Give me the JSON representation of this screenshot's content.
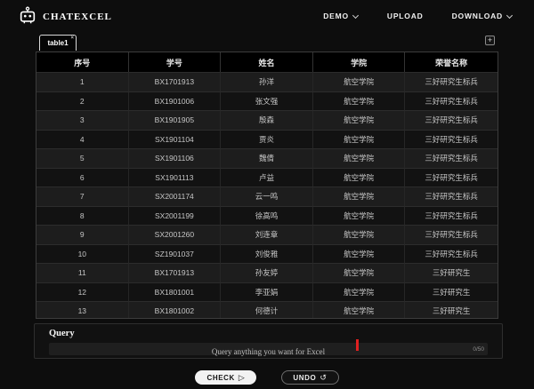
{
  "header": {
    "logo": "ChatExcel",
    "nav": [
      {
        "label": "DEMO",
        "dropdown": true
      },
      {
        "label": "UPLOAD",
        "dropdown": false
      },
      {
        "label": "DOWNLOAD",
        "dropdown": true
      }
    ]
  },
  "workspace": {
    "active_tab": "table1",
    "tab_close": "×",
    "add_table": "+"
  },
  "table": {
    "columns": [
      "序号",
      "学号",
      "姓名",
      "学院",
      "荣誉名称"
    ],
    "rows": [
      [
        "1",
        "BX1701913",
        "孙洋",
        "航空学院",
        "三好研究生标兵"
      ],
      [
        "2",
        "BX1901006",
        "张文强",
        "航空学院",
        "三好研究生标兵"
      ],
      [
        "3",
        "BX1901905",
        "殷森",
        "航空学院",
        "三好研究生标兵"
      ],
      [
        "4",
        "SX1901104",
        "贾炎",
        "航空学院",
        "三好研究生标兵"
      ],
      [
        "5",
        "SX1901106",
        "魏倩",
        "航空学院",
        "三好研究生标兵"
      ],
      [
        "6",
        "SX1901113",
        "卢益",
        "航空学院",
        "三好研究生标兵"
      ],
      [
        "7",
        "SX2001174",
        "云一鸣",
        "航空学院",
        "三好研究生标兵"
      ],
      [
        "8",
        "SX2001199",
        "徐高鸣",
        "航空学院",
        "三好研究生标兵"
      ],
      [
        "9",
        "SX2001260",
        "刘连章",
        "航空学院",
        "三好研究生标兵"
      ],
      [
        "10",
        "SZ1901037",
        "刘俊雅",
        "航空学院",
        "三好研究生标兵"
      ],
      [
        "11",
        "BX1701913",
        "孙友婷",
        "航空学院",
        "三好研究生"
      ],
      [
        "12",
        "BX1801001",
        "李亚娟",
        "航空学院",
        "三好研究生"
      ],
      [
        "13",
        "BX1801002",
        "何德计",
        "航空学院",
        "三好研究生"
      ]
    ]
  },
  "query": {
    "title": "Query",
    "placeholder": "Query anything you want for Excel",
    "counter": "0/50"
  },
  "actions": {
    "check": "CHECK",
    "check_icon": "▷",
    "undo": "UNDO",
    "undo_icon": "↺"
  },
  "colors": {
    "background": "#0d0d0d",
    "table_header_bg": "#000000",
    "row_odd": "#1d1d1d",
    "row_even": "#121212",
    "tab_border": "#d8d8d8",
    "cursor_red": "#e02020",
    "check_button_bg": "#f2f2f2"
  }
}
